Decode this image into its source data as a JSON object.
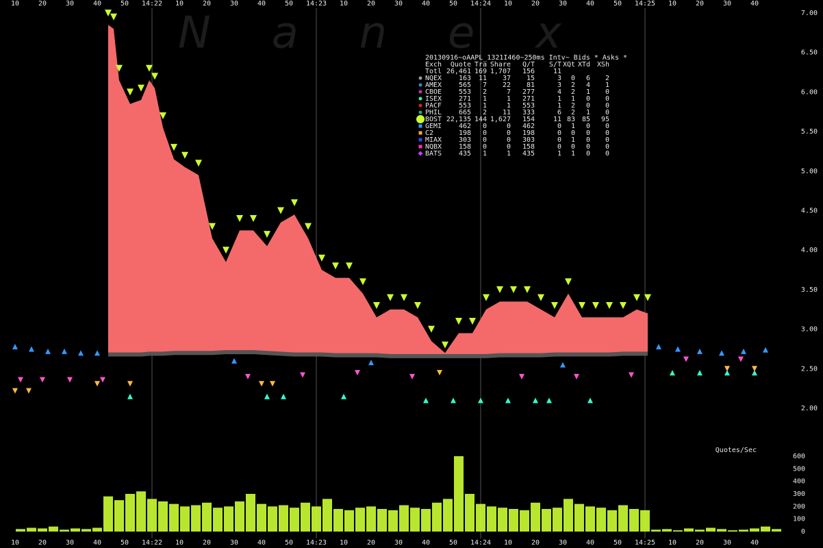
{
  "chart_data": [
    {
      "type": "area",
      "title": "20130916~oAAPL_1321I460~250ms Intv~ Bids * Asks *",
      "watermark": "N a n e x",
      "xlim": [
        "14:21:09",
        "14:25:50"
      ],
      "xticks": [
        {
          "value": "14:21:10",
          "label": "10"
        },
        {
          "value": "14:21:20",
          "label": "20"
        },
        {
          "value": "14:21:30",
          "label": "30"
        },
        {
          "value": "14:21:40",
          "label": "40"
        },
        {
          "value": "14:21:50",
          "label": "50"
        },
        {
          "value": "14:22:00",
          "label": "14:22"
        },
        {
          "value": "14:22:10",
          "label": "10"
        },
        {
          "value": "14:22:20",
          "label": "20"
        },
        {
          "value": "14:22:30",
          "label": "30"
        },
        {
          "value": "14:22:40",
          "label": "40"
        },
        {
          "value": "14:22:50",
          "label": "50"
        },
        {
          "value": "14:23:00",
          "label": "14:23"
        },
        {
          "value": "14:23:10",
          "label": "10"
        },
        {
          "value": "14:23:20",
          "label": "20"
        },
        {
          "value": "14:23:30",
          "label": "30"
        },
        {
          "value": "14:23:40",
          "label": "40"
        },
        {
          "value": "14:23:50",
          "label": "50"
        },
        {
          "value": "14:24:00",
          "label": "14:24"
        },
        {
          "value": "14:24:10",
          "label": "10"
        },
        {
          "value": "14:24:20",
          "label": "20"
        },
        {
          "value": "14:24:30",
          "label": "30"
        },
        {
          "value": "14:24:40",
          "label": "40"
        },
        {
          "value": "14:24:50",
          "label": "50"
        },
        {
          "value": "14:25:00",
          "label": "14:25"
        },
        {
          "value": "14:25:10",
          "label": "10"
        },
        {
          "value": "14:25:20",
          "label": "20"
        },
        {
          "value": "14:25:30",
          "label": "30"
        },
        {
          "value": "14:25:40",
          "label": "40"
        }
      ],
      "ylim": [
        2,
        7
      ],
      "yticks": [
        {
          "value": 2,
          "label": "2.00"
        },
        {
          "value": 2.5,
          "label": "2.50"
        },
        {
          "value": 3,
          "label": "3.00"
        },
        {
          "value": 3.5,
          "label": "3.50"
        },
        {
          "value": 4,
          "label": "4.00"
        },
        {
          "value": 4.5,
          "label": "4.50"
        },
        {
          "value": 5,
          "label": "5.00"
        },
        {
          "value": 5.5,
          "label": "5.50"
        },
        {
          "value": 6,
          "label": "6.00"
        },
        {
          "value": 6.5,
          "label": "6.50"
        },
        {
          "value": 7,
          "label": "7.00"
        }
      ],
      "x": [
        "14:21:44",
        "14:21:46",
        "14:21:48",
        "14:21:52",
        "14:21:56",
        "14:21:59",
        "14:22:01",
        "14:22:04",
        "14:22:08",
        "14:22:12",
        "14:22:17",
        "14:22:22",
        "14:22:27",
        "14:22:32",
        "14:22:37",
        "14:22:42",
        "14:22:47",
        "14:22:52",
        "14:22:57",
        "14:23:02",
        "14:23:07",
        "14:23:12",
        "14:23:17",
        "14:23:22",
        "14:23:27",
        "14:23:32",
        "14:23:37",
        "14:23:42",
        "14:23:47",
        "14:23:52",
        "14:23:57",
        "14:24:02",
        "14:24:07",
        "14:24:12",
        "14:24:17",
        "14:24:22",
        "14:24:27",
        "14:24:32",
        "14:24:37",
        "14:24:42",
        "14:24:47",
        "14:24:52",
        "14:24:57",
        "14:25:01"
      ],
      "series": [
        {
          "color": "#ccff33",
          "marker": "down-triangle",
          "values": [
            7.0,
            6.95,
            6.3,
            6.0,
            6.05,
            6.3,
            6.2,
            5.7,
            5.3,
            5.2,
            5.1,
            4.3,
            4.0,
            4.4,
            4.4,
            4.2,
            4.5,
            4.6,
            4.3,
            3.9,
            3.8,
            3.8,
            3.6,
            3.3,
            3.4,
            3.4,
            3.3,
            3.0,
            2.8,
            3.1,
            3.1,
            3.4,
            3.5,
            3.5,
            3.5,
            3.4,
            3.3,
            3.6,
            3.3,
            3.3,
            3.3,
            3.3,
            3.4,
            3.4
          ]
        },
        {
          "color": "#f46a6a",
          "marker": "area",
          "values": [
            6.85,
            6.8,
            6.15,
            5.85,
            5.9,
            6.15,
            6.05,
            5.55,
            5.15,
            5.05,
            4.95,
            4.15,
            3.85,
            4.25,
            4.25,
            4.05,
            4.35,
            4.45,
            4.15,
            3.75,
            3.65,
            3.65,
            3.45,
            3.15,
            3.25,
            3.25,
            3.15,
            2.85,
            2.7,
            2.95,
            2.95,
            3.25,
            3.35,
            3.35,
            3.35,
            3.25,
            3.15,
            3.45,
            3.15,
            3.15,
            3.15,
            3.15,
            3.25,
            3.2
          ]
        },
        {
          "color": "#555555",
          "marker": "band",
          "values": [
            2.68,
            2.68,
            2.68,
            2.68,
            2.68,
            2.69,
            2.69,
            2.69,
            2.7,
            2.7,
            2.7,
            2.7,
            2.71,
            2.71,
            2.71,
            2.7,
            2.69,
            2.68,
            2.68,
            2.68,
            2.67,
            2.67,
            2.67,
            2.67,
            2.66,
            2.66,
            2.66,
            2.66,
            2.66,
            2.66,
            2.66,
            2.66,
            2.67,
            2.67,
            2.67,
            2.67,
            2.68,
            2.68,
            2.68,
            2.68,
            2.68,
            2.69,
            2.69,
            2.69
          ]
        },
        {
          "color": "#33ffcc",
          "marker": "up-triangle",
          "x": [
            "14:21:52",
            "14:22:42",
            "14:22:48",
            "14:23:10",
            "14:23:40",
            "14:23:50",
            "14:24:00",
            "14:24:10",
            "14:24:20",
            "14:24:25",
            "14:24:40",
            "14:25:10",
            "14:25:20",
            "14:25:30",
            "14:25:40"
          ],
          "values": [
            2.15,
            2.15,
            2.15,
            2.15,
            2.1,
            2.1,
            2.1,
            2.1,
            2.1,
            2.1,
            2.1,
            2.45,
            2.45,
            2.45,
            2.45
          ]
        },
        {
          "color": "#3399ff",
          "marker": "up-triangle",
          "x": [
            "14:21:10",
            "14:21:16",
            "14:21:22",
            "14:21:28",
            "14:21:34",
            "14:21:40",
            "14:22:30",
            "14:23:20",
            "14:24:30",
            "14:25:05",
            "14:25:12",
            "14:25:20",
            "14:25:28",
            "14:25:36",
            "14:25:44"
          ],
          "values": [
            2.78,
            2.75,
            2.72,
            2.72,
            2.7,
            2.7,
            2.6,
            2.58,
            2.55,
            2.78,
            2.75,
            2.72,
            2.7,
            2.72,
            2.74
          ]
        },
        {
          "color": "#ff55cc",
          "marker": "down-triangle",
          "x": [
            "14:21:12",
            "14:21:20",
            "14:21:30",
            "14:21:42",
            "14:22:35",
            "14:22:55",
            "14:23:15",
            "14:23:35",
            "14:24:15",
            "14:24:35",
            "14:24:55",
            "14:25:15",
            "14:25:35"
          ],
          "values": [
            2.36,
            2.36,
            2.36,
            2.36,
            2.4,
            2.42,
            2.45,
            2.4,
            2.4,
            2.4,
            2.42,
            2.62,
            2.62
          ]
        },
        {
          "color": "#ffbb44",
          "marker": "down-triangle",
          "x": [
            "14:21:10",
            "14:21:15",
            "14:21:40",
            "14:21:52",
            "14:22:40",
            "14:22:44",
            "14:23:45",
            "14:25:30",
            "14:25:40"
          ],
          "values": [
            2.22,
            2.22,
            2.31,
            2.31,
            2.31,
            2.31,
            2.45,
            2.5,
            2.5
          ]
        }
      ],
      "table": {
        "columns": [
          "Exch",
          "Quote",
          "Tra",
          "Share",
          "Q/T",
          "S/T",
          "XQt",
          "XTd",
          "XSh"
        ],
        "rows": [
          {
            "cells": [
              "Totl",
              "26,461",
              "169",
              "1,707",
              "156",
              "11"
            ]
          },
          {
            "cells": [
              "NQEX",
              "163",
              "11",
              "37",
              "15",
              "3",
              "0",
              "6",
              "2"
            ],
            "color": "#999999",
            "marker": "circle"
          },
          {
            "cells": [
              "AMEX",
              "565",
              "7",
              "22",
              "81",
              "3",
              "2",
              "4",
              "1"
            ],
            "color": "#3388cc",
            "marker": "circle"
          },
          {
            "cells": [
              "CBOE",
              "553",
              "2",
              "7",
              "277",
              "4",
              "2",
              "1",
              "0"
            ],
            "color": "#cc3399",
            "marker": "circle"
          },
          {
            "cells": [
              "ISEX",
              "271",
              "1",
              "1",
              "271",
              "1",
              "1",
              "0",
              "0"
            ],
            "color": "#33ff99",
            "marker": "circle"
          },
          {
            "cells": [
              "PACF",
              "553",
              "1",
              "1",
              "553",
              "1",
              "2",
              "0",
              "0"
            ],
            "color": "#dd2222",
            "marker": "circle"
          },
          {
            "cells": [
              "PHIL",
              "665",
              "2",
              "11",
              "333",
              "6",
              "2",
              "1",
              "0"
            ],
            "color": "#22aa88",
            "marker": "circle"
          },
          {
            "cells": [
              "BOST",
              "22,135",
              "144",
              "1,627",
              "154",
              "11",
              "83",
              "85",
              "95"
            ],
            "color": "#ccff33",
            "marker": "big-circle"
          },
          {
            "cells": [
              "GEMI",
              "462",
              "0",
              "0",
              "462",
              "0",
              "1",
              "0",
              "0"
            ],
            "color": "#3399ff",
            "marker": "square"
          },
          {
            "cells": [
              "C2",
              "198",
              "0",
              "0",
              "198",
              "0",
              "0",
              "0",
              "0"
            ],
            "color": "#ffaa22",
            "marker": "square"
          },
          {
            "cells": [
              "MIAX",
              "303",
              "0",
              "0",
              "303",
              "0",
              "1",
              "0",
              "0"
            ],
            "color": "#3344ff",
            "marker": "square"
          },
          {
            "cells": [
              "NQBX",
              "158",
              "0",
              "0",
              "158",
              "0",
              "0",
              "0",
              "0"
            ],
            "color": "#ff33aa",
            "marker": "square"
          },
          {
            "cells": [
              "BATS",
              "435",
              "1",
              "1",
              "435",
              "1",
              "1",
              "0",
              "0"
            ],
            "color": "#bb44ff",
            "marker": "diamond"
          }
        ]
      }
    },
    {
      "type": "bar",
      "y_label": "Quotes/Sec",
      "color": "#ccff33",
      "ylim": [
        0,
        600
      ],
      "yticks": [
        0,
        100,
        200,
        300,
        400,
        500,
        600
      ],
      "x": [
        "14:21:12",
        "14:21:16",
        "14:21:20",
        "14:21:24",
        "14:21:28",
        "14:21:32",
        "14:21:36",
        "14:21:40",
        "14:21:44",
        "14:21:48",
        "14:21:52",
        "14:21:56",
        "14:22:00",
        "14:22:04",
        "14:22:08",
        "14:22:12",
        "14:22:16",
        "14:22:20",
        "14:22:24",
        "14:22:28",
        "14:22:32",
        "14:22:36",
        "14:22:40",
        "14:22:44",
        "14:22:48",
        "14:22:52",
        "14:22:56",
        "14:23:00",
        "14:23:04",
        "14:23:08",
        "14:23:12",
        "14:23:16",
        "14:23:20",
        "14:23:24",
        "14:23:28",
        "14:23:32",
        "14:23:36",
        "14:23:40",
        "14:23:44",
        "14:23:48",
        "14:23:52",
        "14:23:56",
        "14:24:00",
        "14:24:04",
        "14:24:08",
        "14:24:12",
        "14:24:16",
        "14:24:20",
        "14:24:24",
        "14:24:28",
        "14:24:32",
        "14:24:36",
        "14:24:40",
        "14:24:44",
        "14:24:48",
        "14:24:52",
        "14:24:56",
        "14:25:00",
        "14:25:04",
        "14:25:08",
        "14:25:12",
        "14:25:16",
        "14:25:20",
        "14:25:24",
        "14:25:28",
        "14:25:32",
        "14:25:36",
        "14:25:40",
        "14:25:44",
        "14:25:48"
      ],
      "values": [
        20,
        30,
        25,
        40,
        15,
        25,
        20,
        30,
        280,
        250,
        300,
        320,
        260,
        240,
        220,
        200,
        210,
        230,
        190,
        200,
        240,
        300,
        220,
        200,
        210,
        190,
        230,
        200,
        260,
        180,
        170,
        190,
        200,
        180,
        170,
        210,
        190,
        180,
        230,
        260,
        600,
        300,
        220,
        200,
        190,
        180,
        170,
        230,
        180,
        190,
        260,
        220,
        200,
        190,
        170,
        210,
        180,
        170,
        15,
        20,
        10,
        25,
        15,
        30,
        20,
        10,
        15,
        25,
        40,
        20
      ]
    }
  ]
}
